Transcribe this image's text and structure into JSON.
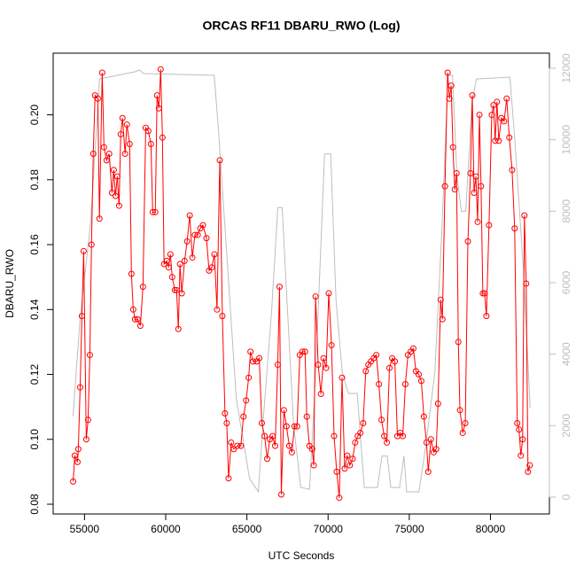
{
  "chart_data": {
    "type": "line",
    "title": "ORCAS RF11 DBARU_RWO (Log)",
    "x_label": "UTC Seconds",
    "y_label": "DBARU_RWO",
    "xlim": [
      53070,
      83630
    ],
    "xticks": [
      55000,
      60000,
      65000,
      70000,
      75000,
      80000
    ],
    "ylim": [
      0.077,
      0.219
    ],
    "yticks": [
      {
        "value": 0.08,
        "label": "0.08"
      },
      {
        "value": 0.1,
        "label": "0.10"
      },
      0.12,
      0.14,
      0.16,
      0.18,
      {
        "value": 0.2,
        "label": "0.20"
      }
    ],
    "y2lim": [
      -471,
      12421
    ],
    "y2ticks": [
      0,
      2000,
      4000,
      6000,
      8000,
      10000,
      12000
    ],
    "y2_color": "#bebebe",
    "series": [
      {
        "color": "#bebebe",
        "axis": "y2",
        "marker": "none",
        "x": [
          54293,
          54728,
          55380,
          55924,
          58098,
          58370,
          58641,
          62989,
          63261,
          63805,
          64348,
          65163,
          65707,
          65979,
          66522,
          66903,
          67174,
          67446,
          67881,
          68316,
          68859,
          69239,
          69783,
          70163,
          70489,
          70870,
          71251,
          71794,
          72229,
          73044,
          73316,
          73642,
          73859,
          74402,
          74674,
          74838,
          75598,
          76033,
          76576,
          77011,
          77392,
          77663,
          77935,
          78207,
          78479,
          78859,
          79131,
          81196,
          81467,
          82011,
          82446
        ],
        "values": [
          2260,
          5000,
          7700,
          11700,
          11900,
          11950,
          11850,
          11800,
          10200,
          6500,
          2750,
          520,
          150,
          2000,
          5200,
          8100,
          8100,
          5700,
          2000,
          270,
          220,
          3500,
          9600,
          9600,
          5500,
          3500,
          2900,
          2900,
          270,
          270,
          1150,
          1150,
          270,
          270,
          1150,
          150,
          150,
          1500,
          3500,
          7500,
          11800,
          11800,
          9000,
          8000,
          8000,
          11000,
          11700,
          11750,
          10200,
          6500,
          2500
        ]
      },
      {
        "color": "#ff0000",
        "marker": "circle",
        "x": [
          54300,
          54400,
          54570,
          54620,
          54730,
          54840,
          54950,
          55110,
          55220,
          55330,
          55430,
          55540,
          55650,
          55820,
          55920,
          56090,
          56200,
          56360,
          56520,
          56690,
          56800,
          56910,
          57020,
          57130,
          57230,
          57340,
          57500,
          57610,
          57780,
          57890,
          58000,
          58110,
          58270,
          58440,
          58600,
          58770,
          58930,
          59090,
          59200,
          59360,
          59470,
          59580,
          59690,
          59800,
          59900,
          60070,
          60180,
          60290,
          60400,
          60560,
          60670,
          60780,
          60880,
          60990,
          61160,
          61320,
          61480,
          61640,
          61800,
          61970,
          62130,
          62290,
          62510,
          62670,
          62840,
          63000,
          63160,
          63330,
          63490,
          63650,
          63760,
          63870,
          64030,
          64190,
          64410,
          64630,
          64790,
          64950,
          65110,
          65220,
          65380,
          65600,
          65760,
          65920,
          66090,
          66250,
          66410,
          66580,
          66740,
          66900,
          67010,
          67120,
          67280,
          67440,
          67610,
          67770,
          67930,
          68090,
          68260,
          68420,
          68580,
          68690,
          68850,
          69020,
          69120,
          69230,
          69390,
          69560,
          69720,
          69880,
          70040,
          70210,
          70370,
          70530,
          70690,
          70860,
          71020,
          71180,
          71340,
          71510,
          71670,
          71830,
          71990,
          72160,
          72320,
          72480,
          72640,
          72810,
          72970,
          73130,
          73290,
          73460,
          73620,
          73780,
          73950,
          74110,
          74270,
          74440,
          74600,
          74760,
          74920,
          75090,
          75250,
          75410,
          75580,
          75740,
          75900,
          76060,
          76170,
          76330,
          76500,
          76660,
          76770,
          76930,
          77040,
          77200,
          77360,
          77470,
          77580,
          77690,
          77800,
          77910,
          78020,
          78120,
          78290,
          78450,
          78610,
          78770,
          78880,
          78990,
          79100,
          79210,
          79320,
          79420,
          79530,
          79640,
          79750,
          79910,
          80080,
          80190,
          80290,
          80400,
          80510,
          80670,
          80840,
          81000,
          81160,
          81330,
          81490,
          81650,
          81760,
          81870,
          81980,
          82090,
          82200,
          82310,
          82420
        ],
        "values": [
          0.087,
          0.095,
          0.093,
          0.097,
          0.116,
          0.138,
          0.158,
          0.1,
          0.106,
          0.126,
          0.16,
          0.188,
          0.206,
          0.205,
          0.168,
          0.213,
          0.19,
          0.186,
          0.188,
          0.176,
          0.183,
          0.175,
          0.181,
          0.172,
          0.194,
          0.199,
          0.188,
          0.197,
          0.191,
          0.151,
          0.14,
          0.137,
          0.137,
          0.135,
          0.147,
          0.196,
          0.195,
          0.191,
          0.17,
          0.17,
          0.206,
          0.202,
          0.214,
          0.193,
          0.154,
          0.155,
          0.153,
          0.157,
          0.15,
          0.146,
          0.146,
          0.134,
          0.154,
          0.145,
          0.155,
          0.161,
          0.169,
          0.156,
          0.163,
          0.163,
          0.165,
          0.166,
          0.162,
          0.152,
          0.153,
          0.157,
          0.14,
          0.186,
          0.138,
          0.108,
          0.105,
          0.088,
          0.099,
          0.097,
          0.098,
          0.098,
          0.107,
          0.112,
          0.119,
          0.127,
          0.124,
          0.124,
          0.125,
          0.105,
          0.101,
          0.094,
          0.1,
          0.101,
          0.098,
          0.123,
          0.147,
          0.083,
          0.109,
          0.104,
          0.098,
          0.096,
          0.104,
          0.104,
          0.126,
          0.127,
          0.127,
          0.107,
          0.098,
          0.097,
          0.092,
          0.144,
          0.123,
          0.114,
          0.125,
          0.122,
          0.145,
          0.129,
          0.101,
          0.09,
          0.082,
          0.119,
          0.091,
          0.095,
          0.092,
          0.094,
          0.099,
          0.101,
          0.102,
          0.105,
          0.121,
          0.123,
          0.124,
          0.125,
          0.126,
          0.117,
          0.106,
          0.101,
          0.099,
          0.122,
          0.125,
          0.124,
          0.101,
          0.102,
          0.101,
          0.117,
          0.126,
          0.127,
          0.128,
          0.121,
          0.12,
          0.118,
          0.107,
          0.099,
          0.09,
          0.1,
          0.096,
          0.097,
          0.111,
          0.143,
          0.137,
          0.178,
          0.213,
          0.205,
          0.209,
          0.19,
          0.177,
          0.182,
          0.13,
          0.109,
          0.102,
          0.105,
          0.161,
          0.182,
          0.206,
          0.176,
          0.181,
          0.167,
          0.2,
          0.178,
          0.145,
          0.145,
          0.138,
          0.166,
          0.2,
          0.203,
          0.192,
          0.204,
          0.192,
          0.199,
          0.198,
          0.205,
          0.193,
          0.183,
          0.165,
          0.105,
          0.103,
          0.095,
          0.1,
          0.169,
          0.148,
          0.09,
          0.092
        ]
      }
    ]
  }
}
